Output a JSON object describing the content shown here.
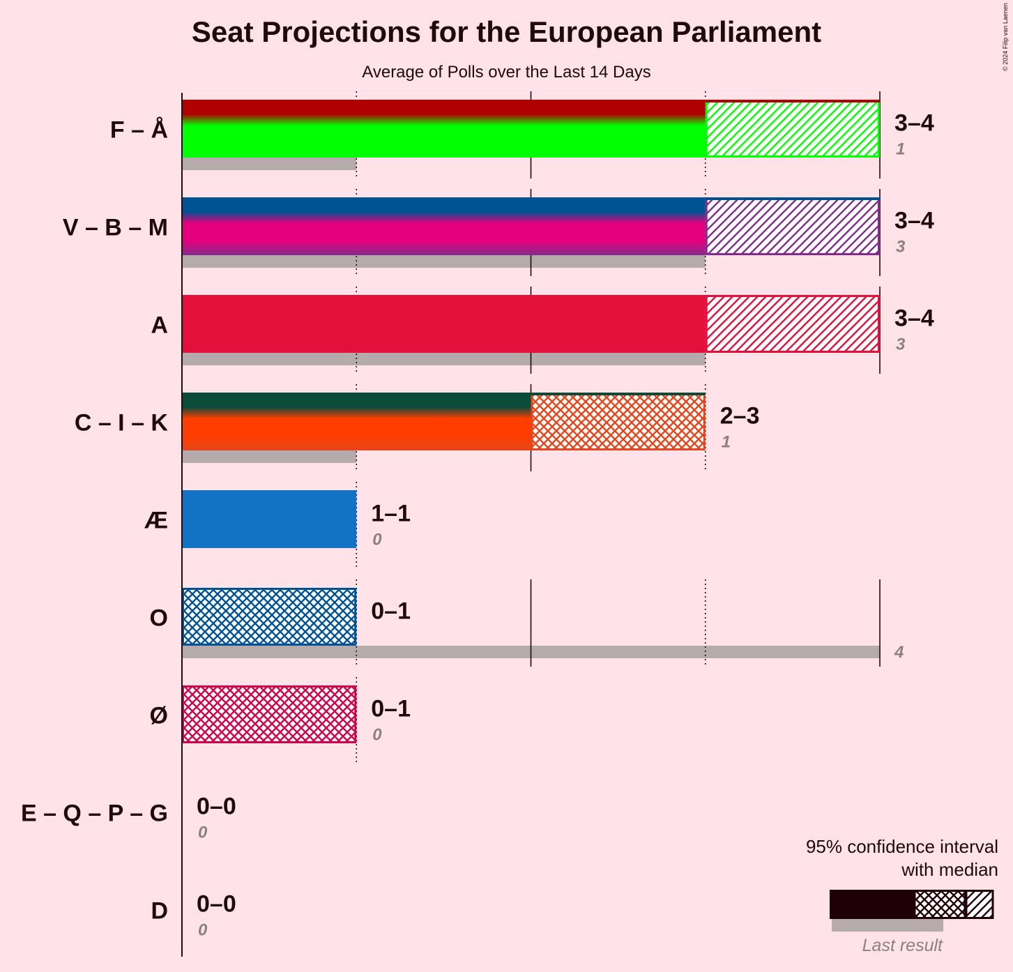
{
  "title": "Seat Projections for the European Parliament",
  "subtitle": "Average of Polls over the Last 14 Days",
  "copyright": "© 2024 Filip van Laenen",
  "legend": {
    "line1": "95% confidence interval",
    "line2": "with median",
    "last_result": "Last result"
  },
  "colors": {
    "background": "#FFE3E8",
    "text": "#1F0A0C",
    "last_result_bar": "#B5AAAC",
    "last_result_label": "#8B8082",
    "legend_fill": "#200008"
  },
  "chart_data": {
    "type": "bar",
    "orientation": "horizontal",
    "xlim": [
      0,
      4
    ],
    "grid": true,
    "legend_position": "bottom-right",
    "series": [
      {
        "name": "95% confidence interval",
        "description_key": "range"
      },
      {
        "name": "Last result",
        "description_key": "last_result"
      }
    ],
    "parties": [
      {
        "label": "F – Å",
        "low": 3,
        "median": 3,
        "high": 4,
        "range_label": "3–4",
        "last_result": 1,
        "last_label": "1",
        "colors": [
          "#B00000",
          "#00FF00",
          "#00FF00"
        ],
        "pattern": "hatch",
        "outline": "#00FF00"
      },
      {
        "label": "V – B – M",
        "low": 3,
        "median": 3,
        "high": 4,
        "range_label": "3–4",
        "last_result": 3,
        "last_label": "3",
        "colors": [
          "#005392",
          "#E5007D",
          "#832B8A"
        ],
        "pattern": "hatch",
        "outline": "#832B8A"
      },
      {
        "label": "A",
        "low": 3,
        "median": 3,
        "high": 4,
        "range_label": "3–4",
        "last_result": 3,
        "last_label": "3",
        "colors": [
          "#E3103B",
          "#E3103B",
          "#E3103B"
        ],
        "pattern": "hatch",
        "outline": "#E3103B"
      },
      {
        "label": "C – I – K",
        "low": 2,
        "median": 2,
        "high": 3,
        "range_label": "2–3",
        "last_result": 1,
        "last_label": "1",
        "colors": [
          "#0B4B3A",
          "#FF3D00",
          "#E6461C"
        ],
        "pattern": "cross",
        "outline": "#E6461C"
      },
      {
        "label": "Æ",
        "low": 1,
        "median": 1,
        "high": 1,
        "range_label": "1–1",
        "last_result": 0,
        "last_label": "0",
        "colors": [
          "#1272C3",
          "#1272C3",
          "#1272C3"
        ],
        "pattern": "none",
        "outline": "#1272C3"
      },
      {
        "label": "O",
        "low": 0,
        "median": 0,
        "high": 1,
        "range_label": "0–1",
        "last_result": 4,
        "last_label": "4",
        "colors": [
          "#005392",
          "#005392",
          "#005392"
        ],
        "pattern": "cross",
        "outline": "#005392"
      },
      {
        "label": "Ø",
        "low": 0,
        "median": 0,
        "high": 1,
        "range_label": "0–1",
        "last_result": 0,
        "last_label": "0",
        "colors": [
          "#D0004D",
          "#D0004D",
          "#D0004D"
        ],
        "pattern": "cross",
        "outline": "#D0004D"
      },
      {
        "label": "E – Q – P – G",
        "low": 0,
        "median": 0,
        "high": 0,
        "range_label": "0–0",
        "last_result": 0,
        "last_label": "0",
        "colors": [
          "#888888",
          "#888888",
          "#888888"
        ],
        "pattern": "none",
        "outline": "#888888"
      },
      {
        "label": "D",
        "low": 0,
        "median": 0,
        "high": 0,
        "range_label": "0–0",
        "last_result": 0,
        "last_label": "0",
        "colors": [
          "#888888",
          "#888888",
          "#888888"
        ],
        "pattern": "none",
        "outline": "#888888"
      }
    ]
  }
}
